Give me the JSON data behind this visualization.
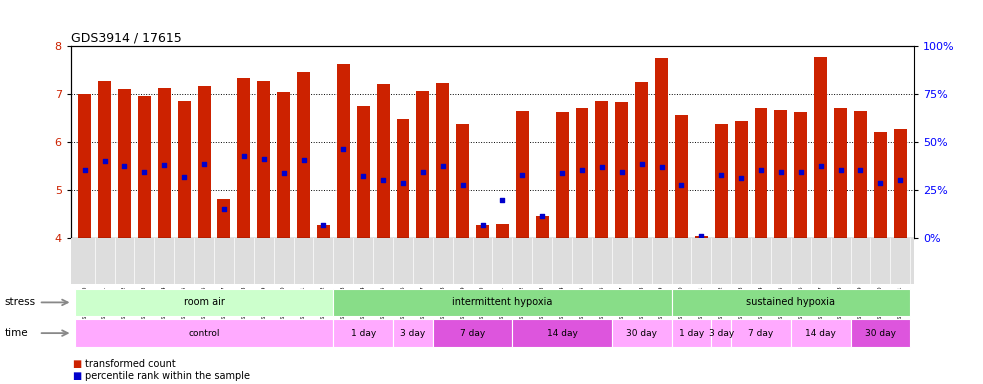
{
  "title": "GDS3914 / 17615",
  "samples": [
    "GSM215660",
    "GSM215661",
    "GSM215662",
    "GSM215663",
    "GSM215664",
    "GSM215665",
    "GSM215666",
    "GSM215667",
    "GSM215668",
    "GSM215669",
    "GSM215670",
    "GSM215671",
    "GSM215672",
    "GSM215673",
    "GSM215674",
    "GSM215675",
    "GSM215676",
    "GSM215677",
    "GSM215678",
    "GSM215679",
    "GSM215680",
    "GSM215681",
    "GSM215682",
    "GSM215683",
    "GSM215684",
    "GSM215685",
    "GSM215686",
    "GSM215687",
    "GSM215688",
    "GSM215689",
    "GSM215690",
    "GSM215691",
    "GSM215692",
    "GSM215693",
    "GSM215694",
    "GSM215695",
    "GSM215696",
    "GSM215697",
    "GSM215698",
    "GSM215699",
    "GSM215700",
    "GSM215701"
  ],
  "bar_values": [
    7.0,
    7.28,
    7.1,
    6.97,
    7.12,
    6.85,
    7.17,
    4.82,
    7.33,
    7.27,
    7.05,
    7.47,
    4.28,
    7.62,
    6.75,
    7.2,
    6.48,
    7.07,
    7.24,
    6.37,
    4.27,
    4.3,
    6.65,
    4.45,
    6.62,
    6.72,
    6.85,
    6.83,
    7.25,
    7.76,
    6.57,
    4.05,
    6.38,
    6.44,
    6.7,
    6.67,
    6.63,
    7.78,
    6.72,
    6.65,
    6.2,
    6.28
  ],
  "blue_values": [
    5.42,
    5.6,
    5.5,
    5.38,
    5.52,
    5.28,
    5.55,
    4.6,
    5.72,
    5.65,
    5.35,
    5.62,
    4.28,
    5.85,
    5.3,
    5.22,
    5.15,
    5.38,
    5.5,
    5.1,
    4.27,
    4.8,
    5.32,
    4.45,
    5.35,
    5.42,
    5.48,
    5.38,
    5.55,
    5.48,
    5.1,
    4.05,
    5.32,
    5.25,
    5.42,
    5.38,
    5.38,
    5.5,
    5.42,
    5.42,
    5.15,
    5.22
  ],
  "ylim": [
    4.0,
    8.0
  ],
  "yticks": [
    4,
    5,
    6,
    7,
    8
  ],
  "right_yticks": [
    0,
    25,
    50,
    75,
    100
  ],
  "right_ylabels": [
    "0%",
    "25%",
    "50%",
    "75%",
    "100%"
  ],
  "bar_color": "#cc2200",
  "blue_color": "#0000cc",
  "stress_defs": [
    [
      0,
      13,
      "#ccffcc",
      "room air"
    ],
    [
      13,
      30,
      "#88dd88",
      "intermittent hypoxia"
    ],
    [
      30,
      42,
      "#88dd88",
      "sustained hypoxia"
    ]
  ],
  "time_defs": [
    [
      0,
      13,
      "#ffaaff",
      "control"
    ],
    [
      13,
      16,
      "#ffaaff",
      "1 day"
    ],
    [
      16,
      18,
      "#ffaaff",
      "3 day"
    ],
    [
      18,
      22,
      "#dd55dd",
      "7 day"
    ],
    [
      22,
      27,
      "#dd55dd",
      "14 day"
    ],
    [
      27,
      30,
      "#ffaaff",
      "30 day"
    ],
    [
      30,
      32,
      "#ffaaff",
      "1 day"
    ],
    [
      32,
      33,
      "#ffaaff",
      "3 day"
    ],
    [
      33,
      36,
      "#ffaaff",
      "7 day"
    ],
    [
      36,
      39,
      "#ffaaff",
      "14 day"
    ],
    [
      39,
      42,
      "#dd55dd",
      "30 day"
    ]
  ]
}
